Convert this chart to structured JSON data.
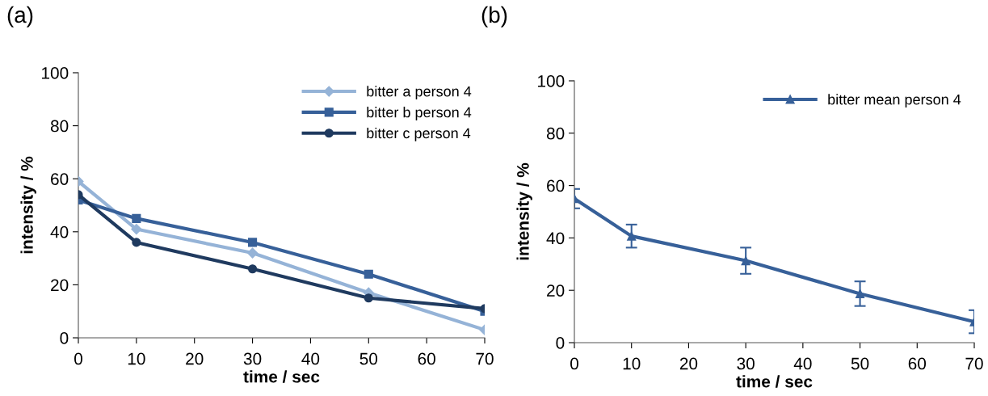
{
  "chart_data": [
    {
      "type": "line",
      "title": "(a)",
      "xlabel": "time / sec",
      "ylabel": "intensity / %",
      "x": [
        0,
        10,
        30,
        50,
        70
      ],
      "xlim": [
        0,
        70
      ],
      "xticks": [
        0,
        10,
        20,
        30,
        40,
        50,
        60,
        70
      ],
      "ylim": [
        0,
        100
      ],
      "yticks": [
        0,
        20,
        40,
        60,
        80,
        100
      ],
      "grid": false,
      "legend": "top right",
      "series": [
        {
          "name": "bitter a person 4",
          "color": "#95b3d7",
          "marker": "diamond",
          "values": [
            59,
            41,
            32,
            17,
            3
          ]
        },
        {
          "name": "bitter b person 4",
          "color": "#376099",
          "marker": "square",
          "values": [
            52,
            45,
            36,
            24,
            10
          ]
        },
        {
          "name": "bitter c person 4",
          "color": "#1f3a5f",
          "marker": "circle",
          "values": [
            54,
            36,
            26,
            15,
            11
          ]
        }
      ]
    },
    {
      "type": "line",
      "title": "(b)",
      "xlabel": "time / sec",
      "ylabel": "intensity / %",
      "x": [
        0,
        10,
        30,
        50,
        70
      ],
      "xlim": [
        0,
        70
      ],
      "xticks": [
        0,
        10,
        20,
        30,
        40,
        50,
        60,
        70
      ],
      "ylim": [
        0,
        100
      ],
      "yticks": [
        0,
        20,
        40,
        60,
        80,
        100
      ],
      "grid": false,
      "legend": "top right",
      "series": [
        {
          "name": "bitter mean person 4",
          "color": "#376099",
          "marker": "triangle",
          "values": [
            55,
            40.7,
            31.3,
            18.7,
            8
          ],
          "errors": [
            3.7,
            4.4,
            5,
            4.7,
            4.4
          ]
        }
      ]
    }
  ]
}
